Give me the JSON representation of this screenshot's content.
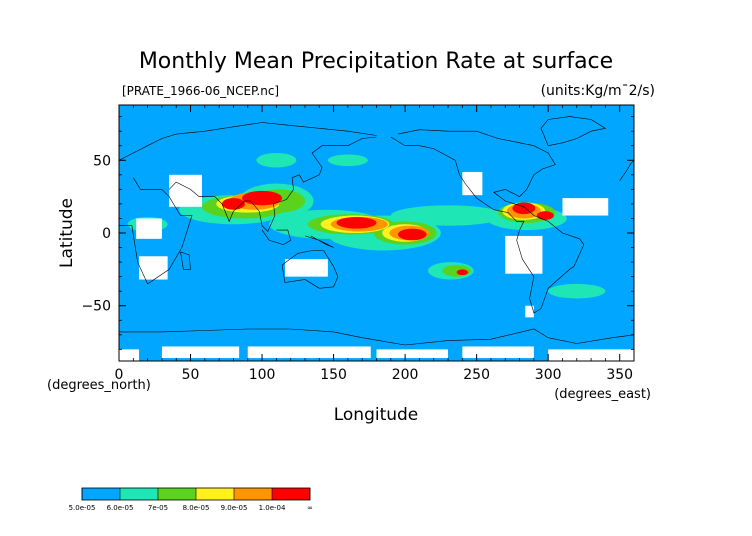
{
  "chart_data": {
    "type": "heatmap",
    "title": "Monthly Mean Precipitation Rate at surface",
    "subtitle_left": "[PRATE_1966-06_NCEP.nc]",
    "subtitle_right": "(units:Kg/m¯2/s)",
    "xlabel": "Longitude",
    "ylabel": "Latitude",
    "x_unit_note": "(degrees_east)",
    "y_unit_note": "(degrees_north)",
    "xlim": [
      0,
      360
    ],
    "ylim": [
      -88,
      88
    ],
    "x_ticks": [
      0,
      50,
      100,
      150,
      200,
      250,
      300,
      350
    ],
    "y_ticks": [
      50,
      0,
      -50
    ],
    "x_tick_labels": [
      "0",
      "50",
      "100",
      "150",
      "200",
      "250",
      "300",
      "350"
    ],
    "y_tick_labels": [
      "50",
      "0",
      "−50"
    ],
    "colorbar": {
      "labels": [
        "5.0e-05",
        "6.0e-05",
        "7e-05",
        "8.0e-05",
        "9.0e-05",
        "1.0e-04",
        "∞"
      ],
      "bins": [
        {
          "min": 5e-05,
          "max": 6e-05,
          "color": "#00a6ff"
        },
        {
          "min": 6e-05,
          "max": 7e-05,
          "color": "#1ee6b4"
        },
        {
          "min": 7e-05,
          "max": 8e-05,
          "color": "#5ad21e"
        },
        {
          "min": 8e-05,
          "max": 9e-05,
          "color": "#fff01e"
        },
        {
          "min": 9e-05,
          "max": 0.0001,
          "color": "#ff9600"
        },
        {
          "min": 0.0001,
          "max": null,
          "color": "#ff0000"
        }
      ]
    },
    "background_color": "#00a6ff",
    "below_range_color": "#ffffff",
    "colors": {
      "bin2": "#1ee6b4",
      "bin3": "#5ad21e",
      "bin4": "#fff01e",
      "bin5": "#ff9600",
      "bin6": "#ff0000"
    },
    "regions": [
      {
        "lon": 230,
        "lat": 12,
        "dlon": 40,
        "dlat": 7,
        "level": 2
      },
      {
        "lon": 285,
        "lat": 10,
        "dlon": 28,
        "dlat": 8,
        "level": 2
      },
      {
        "lon": 80,
        "lat": 16,
        "dlon": 38,
        "dlat": 10,
        "level": 2
      },
      {
        "lon": 110,
        "lat": 22,
        "dlon": 26,
        "dlat": 12,
        "level": 2
      },
      {
        "lon": 145,
        "lat": 6,
        "dlon": 40,
        "dlat": 10,
        "level": 2
      },
      {
        "lon": 185,
        "lat": 0,
        "dlon": 40,
        "dlat": 12,
        "level": 2
      },
      {
        "lon": 232,
        "lat": -26,
        "dlon": 16,
        "dlat": 6,
        "level": 2
      },
      {
        "lon": 320,
        "lat": -40,
        "dlon": 20,
        "dlat": 5,
        "level": 2
      },
      {
        "lon": 20,
        "lat": 6,
        "dlon": 14,
        "dlat": 5,
        "level": 2
      },
      {
        "lon": 110,
        "lat": 50,
        "dlon": 14,
        "dlat": 5,
        "level": 2
      },
      {
        "lon": 160,
        "lat": 50,
        "dlon": 14,
        "dlat": 4,
        "level": 2
      },
      {
        "lon": 88,
        "lat": 18,
        "dlon": 30,
        "dlat": 8,
        "level": 3
      },
      {
        "lon": 112,
        "lat": 22,
        "dlon": 18,
        "dlat": 8,
        "level": 3
      },
      {
        "lon": 162,
        "lat": 6,
        "dlon": 30,
        "dlat": 7,
        "level": 3
      },
      {
        "lon": 200,
        "lat": 0,
        "dlon": 22,
        "dlat": 8,
        "level": 3
      },
      {
        "lon": 285,
        "lat": 14,
        "dlon": 20,
        "dlat": 7,
        "level": 3
      },
      {
        "lon": 236,
        "lat": -26,
        "dlon": 10,
        "dlat": 4,
        "level": 3
      },
      {
        "lon": 90,
        "lat": 20,
        "dlon": 22,
        "dlat": 6,
        "level": 4
      },
      {
        "lon": 165,
        "lat": 6,
        "dlon": 24,
        "dlat": 6,
        "level": 4
      },
      {
        "lon": 200,
        "lat": 0,
        "dlon": 16,
        "dlat": 6,
        "level": 4
      },
      {
        "lon": 283,
        "lat": 15,
        "dlon": 15,
        "dlat": 6,
        "level": 4
      },
      {
        "lon": 95,
        "lat": 22,
        "dlon": 18,
        "dlat": 6,
        "level": 5
      },
      {
        "lon": 168,
        "lat": 6,
        "dlon": 20,
        "dlat": 5,
        "level": 5
      },
      {
        "lon": 203,
        "lat": 0,
        "dlon": 14,
        "dlat": 5,
        "level": 5
      },
      {
        "lon": 283,
        "lat": 15,
        "dlon": 12,
        "dlat": 5,
        "level": 5
      },
      {
        "lon": 100,
        "lat": 24,
        "dlon": 14,
        "dlat": 5,
        "level": 6
      },
      {
        "lon": 80,
        "lat": 20,
        "dlon": 8,
        "dlat": 4,
        "level": 6
      },
      {
        "lon": 166,
        "lat": 7,
        "dlon": 14,
        "dlat": 4,
        "level": 6
      },
      {
        "lon": 205,
        "lat": -1,
        "dlon": 10,
        "dlat": 4,
        "level": 6
      },
      {
        "lon": 283,
        "lat": 17,
        "dlon": 8,
        "dlat": 4,
        "level": 6
      },
      {
        "lon": 298,
        "lat": 12,
        "dlon": 6,
        "dlat": 3,
        "level": 6
      },
      {
        "lon": 240,
        "lat": -27,
        "dlon": 4,
        "dlat": 2,
        "level": 6
      }
    ],
    "white_areas": [
      {
        "lon0": 0,
        "lon1": 14,
        "lat0": -80,
        "lat1": -88
      },
      {
        "lon0": 30,
        "lon1": 84,
        "lat0": -78,
        "lat1": -86
      },
      {
        "lon0": 90,
        "lon1": 176,
        "lat0": -78,
        "lat1": -86
      },
      {
        "lon0": 180,
        "lon1": 230,
        "lat0": -80,
        "lat1": -86
      },
      {
        "lon0": 240,
        "lon1": 290,
        "lat0": -78,
        "lat1": -86
      },
      {
        "lon0": 300,
        "lon1": 360,
        "lat0": -80,
        "lat1": -88
      },
      {
        "lon0": 35,
        "lon1": 58,
        "lat0": 40,
        "lat1": 18
      },
      {
        "lon0": 12,
        "lon1": 30,
        "lat0": 10,
        "lat1": -4
      },
      {
        "lon0": 14,
        "lon1": 34,
        "lat0": -16,
        "lat1": -32
      },
      {
        "lon0": 116,
        "lon1": 146,
        "lat0": -18,
        "lat1": -30
      },
      {
        "lon0": 240,
        "lon1": 254,
        "lat0": 42,
        "lat1": 26
      },
      {
        "lon0": 270,
        "lon1": 296,
        "lat0": -2,
        "lat1": -28
      },
      {
        "lon0": 310,
        "lon1": 342,
        "lat0": 24,
        "lat1": 12
      },
      {
        "lon0": 284,
        "lon1": 290,
        "lat0": -58,
        "lat1": -50
      }
    ],
    "coastlines": [
      [
        [
          0,
          50
        ],
        [
          10,
          55
        ],
        [
          20,
          60
        ],
        [
          30,
          65
        ],
        [
          40,
          68
        ],
        [
          60,
          70
        ],
        [
          80,
          73
        ],
        [
          100,
          76
        ],
        [
          120,
          74
        ],
        [
          140,
          72
        ],
        [
          160,
          70
        ],
        [
          180,
          67
        ]
      ],
      [
        [
          10,
          38
        ],
        [
          15,
          30
        ],
        [
          30,
          30
        ],
        [
          35,
          25
        ],
        [
          43,
          12
        ],
        [
          51,
          12
        ],
        [
          44,
          -10
        ],
        [
          35,
          -25
        ],
        [
          20,
          -35
        ],
        [
          13,
          -20
        ],
        [
          9,
          5
        ],
        [
          0,
          5
        ],
        [
          -5,
          10
        ]
      ],
      [
        [
          35,
          30
        ],
        [
          40,
          35
        ],
        [
          50,
          30
        ],
        [
          56,
          25
        ],
        [
          60,
          25
        ],
        [
          67,
          25
        ],
        [
          72,
          20
        ],
        [
          77,
          8
        ],
        [
          80,
          15
        ],
        [
          88,
          22
        ],
        [
          92,
          22
        ],
        [
          98,
          15
        ],
        [
          100,
          5
        ],
        [
          104,
          1
        ],
        [
          109,
          12
        ],
        [
          108,
          20
        ],
        [
          117,
          23
        ],
        [
          122,
          30
        ],
        [
          121,
          38
        ],
        [
          126,
          40
        ],
        [
          129,
          35
        ],
        [
          140,
          40
        ],
        [
          142,
          45
        ],
        [
          135,
          55
        ],
        [
          142,
          60
        ],
        [
          160,
          60
        ],
        [
          170,
          65
        ],
        [
          180,
          66
        ]
      ],
      [
        [
          114,
          -22
        ],
        [
          125,
          -14
        ],
        [
          135,
          -12
        ],
        [
          143,
          -12
        ],
        [
          150,
          -23
        ],
        [
          153,
          -30
        ],
        [
          150,
          -37
        ],
        [
          140,
          -38
        ],
        [
          130,
          -32
        ],
        [
          116,
          -34
        ],
        [
          114,
          -22
        ]
      ],
      [
        [
          190,
          66
        ],
        [
          200,
          60
        ],
        [
          210,
          60
        ],
        [
          220,
          58
        ],
        [
          235,
          50
        ],
        [
          238,
          40
        ],
        [
          242,
          34
        ],
        [
          250,
          24
        ],
        [
          262,
          16
        ],
        [
          272,
          14
        ],
        [
          278,
          8
        ],
        [
          283,
          8
        ],
        [
          280,
          2
        ],
        [
          278,
          -5
        ],
        [
          282,
          -18
        ],
        [
          290,
          -30
        ],
        [
          287,
          -45
        ],
        [
          290,
          -55
        ],
        [
          295,
          -52
        ],
        [
          300,
          -38
        ],
        [
          315,
          -25
        ],
        [
          318,
          -23
        ],
        [
          325,
          -8
        ],
        [
          322,
          -4
        ],
        [
          310,
          0
        ],
        [
          300,
          8
        ],
        [
          290,
          12
        ],
        [
          283,
          18
        ],
        [
          270,
          22
        ],
        [
          262,
          28
        ],
        [
          270,
          30
        ],
        [
          280,
          25
        ],
        [
          285,
          30
        ],
        [
          290,
          40
        ],
        [
          296,
          44
        ],
        [
          305,
          47
        ],
        [
          300,
          55
        ],
        [
          290,
          60
        ],
        [
          280,
          62
        ],
        [
          265,
          65
        ],
        [
          250,
          70
        ],
        [
          230,
          70
        ],
        [
          210,
          71
        ],
        [
          195,
          68
        ]
      ],
      [
        [
          300,
          60
        ],
        [
          310,
          62
        ],
        [
          320,
          65
        ],
        [
          330,
          70
        ],
        [
          340,
          72
        ],
        [
          330,
          78
        ],
        [
          315,
          80
        ],
        [
          300,
          78
        ],
        [
          295,
          72
        ],
        [
          300,
          60
        ]
      ],
      [
        [
          350,
          36
        ],
        [
          355,
          43
        ],
        [
          358,
          48
        ],
        [
          360,
          50
        ]
      ],
      [
        [
          0,
          -68
        ],
        [
          30,
          -68
        ],
        [
          60,
          -67
        ],
        [
          90,
          -66
        ],
        [
          120,
          -66
        ],
        [
          150,
          -68
        ],
        [
          170,
          -72
        ],
        [
          200,
          -77
        ],
        [
          230,
          -74
        ],
        [
          260,
          -73
        ],
        [
          290,
          -66
        ],
        [
          300,
          -72
        ],
        [
          320,
          -76
        ],
        [
          345,
          -72
        ],
        [
          360,
          -70
        ]
      ],
      [
        [
          100,
          2
        ],
        [
          105,
          -5
        ],
        [
          115,
          -8
        ],
        [
          120,
          -5
        ],
        [
          118,
          2
        ],
        [
          110,
          2
        ]
      ],
      [
        [
          43,
          -13
        ],
        [
          49,
          -15
        ],
        [
          50,
          -25
        ],
        [
          45,
          -25
        ],
        [
          43,
          -13
        ]
      ],
      [
        [
          130,
          -2
        ],
        [
          140,
          -5
        ],
        [
          150,
          -10
        ],
        [
          145,
          -8
        ],
        [
          134,
          -2
        ]
      ]
    ]
  }
}
